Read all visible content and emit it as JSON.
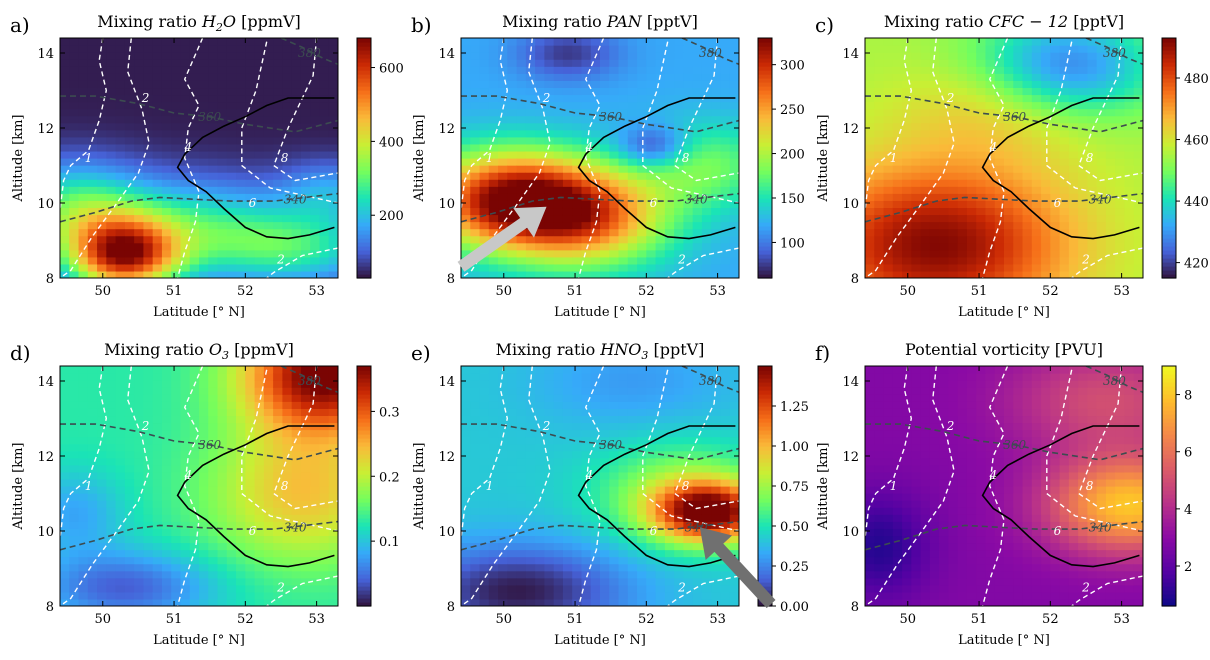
{
  "figure": {
    "shared": {
      "xlabel": "Latitude [° N]",
      "ylabel": "Altitude [km]",
      "xlim": [
        49.4,
        53.3
      ],
      "ylim": [
        8,
        14.4
      ],
      "xticks": [
        "50",
        "51",
        "52",
        "53"
      ],
      "yticks": [
        "8",
        "10",
        "12",
        "14"
      ],
      "xtick_values": [
        50,
        51,
        52,
        53
      ],
      "ytick_values": [
        8,
        10,
        12,
        14
      ],
      "pv_contour_labels": [
        "1",
        "2",
        "4",
        "6",
        "8",
        "2"
      ],
      "theta_contour_labels": [
        "340",
        "360",
        "380"
      ]
    },
    "arrows": [
      {
        "panel": "b",
        "color": "#c8c8c8",
        "tail": [
          49.4,
          8.3
        ],
        "head": [
          50.6,
          9.9
        ]
      },
      {
        "panel": "e",
        "color": "#707070",
        "tail": [
          53.75,
          8.05
        ],
        "head": [
          52.75,
          10.1
        ]
      }
    ]
  },
  "chart_data": [
    {
      "id": "a",
      "type": "heatmap",
      "panel_letter": "a)",
      "title_prefix": "Mixing ratio ",
      "title_var": "H",
      "title_sub": "2",
      "title_var2": "O",
      "title_unit": " [ppmV]",
      "colormap": "turbo",
      "vmin": 30,
      "vmax": 680,
      "cbar_ticks": [
        "200",
        "400",
        "600"
      ],
      "cbar_tick_values": [
        200,
        400,
        600
      ],
      "fields": {
        "background": 40,
        "blobs": [
          {
            "lat": 50.3,
            "alt": 8.6,
            "sx": 0.55,
            "sy": 0.7,
            "amp": 520
          },
          {
            "lat": 49.6,
            "alt": 9.8,
            "sx": 0.7,
            "sy": 0.9,
            "amp": 240
          },
          {
            "lat": 51.3,
            "alt": 9.4,
            "sx": 1.0,
            "sy": 0.9,
            "amp": 190
          },
          {
            "lat": 52.7,
            "alt": 8.8,
            "sx": 0.9,
            "sy": 0.7,
            "amp": 200
          },
          {
            "lat": 53.2,
            "alt": 10.3,
            "sx": 0.5,
            "sy": 0.6,
            "amp": 120
          }
        ]
      }
    },
    {
      "id": "b",
      "type": "heatmap",
      "panel_letter": "b)",
      "title_prefix": "Mixing ratio ",
      "title_var": "PAN",
      "title_sub": "",
      "title_var2": "",
      "title_unit": " [pptV]",
      "colormap": "turbo",
      "vmin": 60,
      "vmax": 330,
      "cbar_ticks": [
        "100",
        "150",
        "200",
        "250",
        "300"
      ],
      "cbar_tick_values": [
        100,
        150,
        200,
        250,
        300
      ],
      "fields": {
        "background": 120,
        "blobs": [
          {
            "lat": 50.1,
            "alt": 10.1,
            "sx": 0.85,
            "sy": 0.9,
            "amp": 200
          },
          {
            "lat": 51.2,
            "alt": 9.6,
            "sx": 0.8,
            "sy": 0.9,
            "amp": 130
          },
          {
            "lat": 52.1,
            "alt": 11.5,
            "sx": 0.35,
            "sy": 0.4,
            "amp": -60
          },
          {
            "lat": 50.9,
            "alt": 14.0,
            "sx": 0.5,
            "sy": 0.5,
            "amp": -45
          },
          {
            "lat": 52.8,
            "alt": 11.0,
            "sx": 0.7,
            "sy": 0.8,
            "amp": 60
          }
        ]
      }
    },
    {
      "id": "c",
      "type": "heatmap",
      "panel_letter": "c)",
      "title_prefix": "Mixing ratio ",
      "title_var": "CFC",
      "title_sub": "",
      "title_var2": " − 12",
      "title_unit": " [pptV]",
      "colormap": "turbo",
      "vmin": 415,
      "vmax": 493,
      "cbar_ticks": [
        "420",
        "440",
        "460",
        "480"
      ],
      "cbar_tick_values": [
        420,
        440,
        460,
        480
      ],
      "fields": {
        "background": 455,
        "blobs": [
          {
            "lat": 50.4,
            "alt": 8.9,
            "sx": 1.3,
            "sy": 1.5,
            "amp": 37
          },
          {
            "lat": 52.2,
            "alt": 13.6,
            "sx": 0.9,
            "sy": 1.0,
            "amp": -30
          },
          {
            "lat": 51.4,
            "alt": 12.6,
            "sx": 1.0,
            "sy": 1.0,
            "amp": 12
          }
        ]
      }
    },
    {
      "id": "d",
      "type": "heatmap",
      "panel_letter": "d)",
      "title_prefix": "Mixing ratio ",
      "title_var": "O",
      "title_sub": "3",
      "title_var2": "",
      "title_unit": " [ppmV]",
      "colormap": "turbo",
      "vmin": 0.0,
      "vmax": 0.37,
      "cbar_ticks": [
        "0.1",
        "0.2",
        "0.3"
      ],
      "cbar_tick_values": [
        0.1,
        0.2,
        0.3
      ],
      "fields": {
        "background": 0.13,
        "blobs": [
          {
            "lat": 53.1,
            "alt": 14.2,
            "sx": 0.8,
            "sy": 1.1,
            "amp": 0.25
          },
          {
            "lat": 52.8,
            "alt": 11.0,
            "sx": 0.9,
            "sy": 1.3,
            "amp": 0.11
          },
          {
            "lat": 50.3,
            "alt": 8.5,
            "sx": 0.9,
            "sy": 0.7,
            "amp": -0.09
          },
          {
            "lat": 49.6,
            "alt": 10.5,
            "sx": 0.5,
            "sy": 0.8,
            "amp": -0.05
          }
        ]
      }
    },
    {
      "id": "e",
      "type": "heatmap",
      "panel_letter": "e)",
      "title_prefix": "Mixing ratio ",
      "title_var": "HNO",
      "title_sub": "3",
      "title_var2": "",
      "title_unit": " [pptV]",
      "colormap": "turbo",
      "vmin": 0.0,
      "vmax": 1.5,
      "cbar_ticks": [
        "0.00",
        "0.25",
        "0.50",
        "0.75",
        "1.00",
        "1.25"
      ],
      "cbar_tick_values": [
        0,
        0.25,
        0.5,
        0.75,
        1.0,
        1.25
      ],
      "fields": {
        "background": 0.42,
        "blobs": [
          {
            "lat": 52.9,
            "alt": 10.5,
            "sx": 0.55,
            "sy": 0.55,
            "amp": 1.0
          },
          {
            "lat": 52.5,
            "alt": 11.0,
            "sx": 0.8,
            "sy": 0.9,
            "amp": 0.35
          },
          {
            "lat": 50.2,
            "alt": 8.4,
            "sx": 1.1,
            "sy": 0.9,
            "amp": -0.4
          },
          {
            "lat": 51.8,
            "alt": 14.0,
            "sx": 1.0,
            "sy": 0.9,
            "amp": -0.12
          }
        ]
      }
    },
    {
      "id": "f",
      "type": "heatmap",
      "panel_letter": "f)",
      "title_prefix": "Potential vorticity [PVU]",
      "title_var": "",
      "title_sub": "",
      "title_var2": "",
      "title_unit": "",
      "colormap": "plasma",
      "vmin": 0.6,
      "vmax": 9.0,
      "cbar_ticks": [
        "2",
        "4",
        "6",
        "8"
      ],
      "cbar_tick_values": [
        2,
        4,
        6,
        8
      ],
      "fields": {
        "background": 2.8,
        "blobs": [
          {
            "lat": 53.1,
            "alt": 10.7,
            "sx": 0.8,
            "sy": 0.9,
            "amp": 5.2
          },
          {
            "lat": 52.8,
            "alt": 13.5,
            "sx": 1.0,
            "sy": 1.0,
            "amp": 2.2
          },
          {
            "lat": 49.6,
            "alt": 9.6,
            "sx": 0.5,
            "sy": 1.0,
            "amp": -1.8
          }
        ]
      }
    }
  ]
}
